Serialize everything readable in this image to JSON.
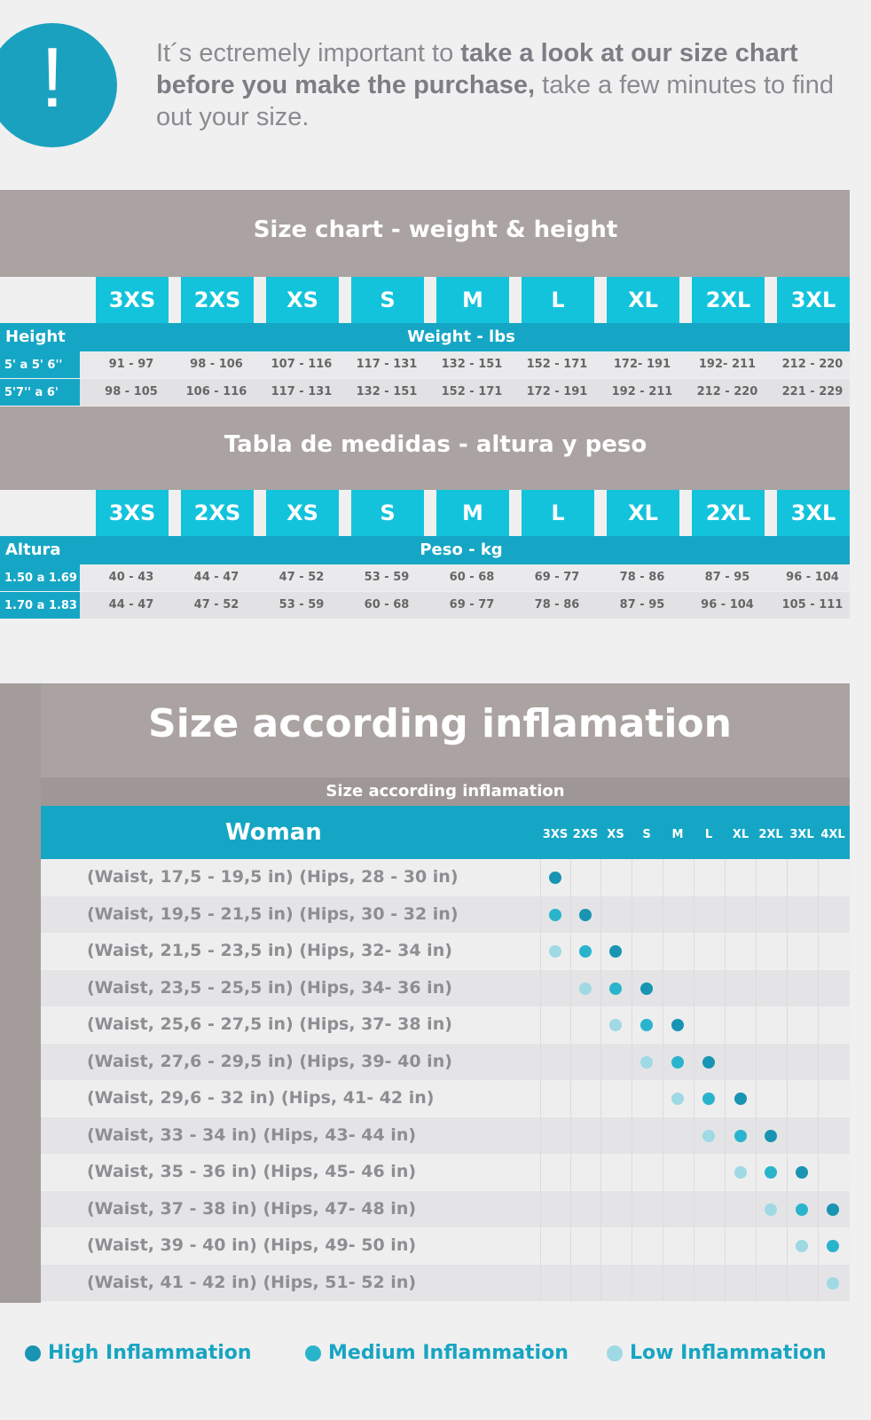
{
  "intro": {
    "pre": "It´s ectremely important to ",
    "bold": "take a look at our size chart before you make the purchase,",
    "post": " take a few minutes to find out your size.",
    "icon": "exclamation-icon",
    "icon_char": "!"
  },
  "chart1": {
    "title": "Size chart - weight & height",
    "sizes": [
      "3XS",
      "2XS",
      "XS",
      "S",
      "M",
      "L",
      "XL",
      "2XL",
      "3XL"
    ],
    "row_header": "Height",
    "unit_header": "Weight - lbs",
    "rows": [
      {
        "label": "5' a 5' 6''",
        "values": [
          "91 - 97",
          "98 - 106",
          "107 - 116",
          "117 - 131",
          "132 - 151",
          "152 - 171",
          "172- 191",
          "192- 211",
          "212 - 220"
        ]
      },
      {
        "label": "5'7'' a 6'",
        "values": [
          "98 - 105",
          "106 - 116",
          "117 - 131",
          "132 - 151",
          "152 - 171",
          "172 - 191",
          "192 - 211",
          "212 - 220",
          "221 - 229"
        ]
      }
    ]
  },
  "chart2": {
    "title": "Tabla de medidas - altura y peso",
    "sizes": [
      "3XS",
      "2XS",
      "XS",
      "S",
      "M",
      "L",
      "XL",
      "2XL",
      "3XL"
    ],
    "row_header": "Altura",
    "unit_header": "Peso - kg",
    "rows": [
      {
        "label": "1.50 a 1.69",
        "values": [
          "40 - 43",
          "44 - 47",
          "47 - 52",
          "53 - 59",
          "60 - 68",
          "69 - 77",
          "78 - 86",
          "87 - 95",
          "96 - 104"
        ]
      },
      {
        "label": "1.70 a 1.83",
        "values": [
          "44 - 47",
          "47 - 52",
          "53 - 59",
          "60 - 68",
          "69 - 77",
          "78 - 86",
          "87 - 95",
          "96 - 104",
          "105 - 111"
        ]
      }
    ]
  },
  "inflammation": {
    "title": "Size according inflamation",
    "subtitle": "Size according inflamation",
    "group": "Woman",
    "sizes": [
      "3XS",
      "2XS",
      "XS",
      "S",
      "M",
      "L",
      "XL",
      "2XL",
      "3XL",
      "4XL"
    ],
    "colors": {
      "high": "#1a94b3",
      "medium": "#2ab4cc",
      "low": "#9fd9e4"
    },
    "rows": [
      {
        "label": "(Waist, 17,5 - 19,5 in) (Hips, 28 - 30 in)",
        "dots": [
          [
            "3XS",
            "high"
          ]
        ]
      },
      {
        "label": "(Waist, 19,5 - 21,5 in) (Hips, 30 - 32 in)",
        "dots": [
          [
            "3XS",
            "medium"
          ],
          [
            "2XS",
            "high"
          ]
        ]
      },
      {
        "label": "(Waist, 21,5 - 23,5 in) (Hips, 32- 34 in)",
        "dots": [
          [
            "3XS",
            "low"
          ],
          [
            "2XS",
            "medium"
          ],
          [
            "XS",
            "high"
          ]
        ]
      },
      {
        "label": "(Waist, 23,5 - 25,5 in) (Hips, 34- 36 in)",
        "dots": [
          [
            "2XS",
            "low"
          ],
          [
            "XS",
            "medium"
          ],
          [
            "S",
            "high"
          ]
        ]
      },
      {
        "label": "(Waist, 25,6 - 27,5 in) (Hips, 37- 38 in)",
        "dots": [
          [
            "XS",
            "low"
          ],
          [
            "S",
            "medium"
          ],
          [
            "M",
            "high"
          ]
        ]
      },
      {
        "label": "(Waist, 27,6 - 29,5 in) (Hips, 39- 40 in)",
        "dots": [
          [
            "S",
            "low"
          ],
          [
            "M",
            "medium"
          ],
          [
            "L",
            "high"
          ]
        ]
      },
      {
        "label": "(Waist, 29,6 - 32 in) (Hips, 41- 42 in)",
        "dots": [
          [
            "M",
            "low"
          ],
          [
            "L",
            "medium"
          ],
          [
            "XL",
            "high"
          ]
        ]
      },
      {
        "label": "(Waist, 33 - 34 in) (Hips, 43- 44 in)",
        "dots": [
          [
            "L",
            "low"
          ],
          [
            "XL",
            "medium"
          ],
          [
            "2XL",
            "high"
          ]
        ]
      },
      {
        "label": "(Waist, 35 - 36 in) (Hips, 45- 46 in)",
        "dots": [
          [
            "XL",
            "low"
          ],
          [
            "2XL",
            "medium"
          ],
          [
            "3XL",
            "high"
          ]
        ]
      },
      {
        "label": "(Waist, 37 - 38 in) (Hips, 47- 48 in)",
        "dots": [
          [
            "2XL",
            "low"
          ],
          [
            "3XL",
            "medium"
          ],
          [
            "4XL",
            "high"
          ]
        ]
      },
      {
        "label": "(Waist, 39 - 40 in) (Hips, 49- 50 in)",
        "dots": [
          [
            "3XL",
            "low"
          ],
          [
            "4XL",
            "medium"
          ]
        ]
      },
      {
        "label": "(Waist, 41 - 42 in) (Hips, 51- 52 in)",
        "dots": [
          [
            "4XL",
            "low"
          ]
        ]
      }
    ],
    "legend": [
      {
        "label": "High Inflammation",
        "level": "high"
      },
      {
        "label": "Medium Inflammation",
        "level": "medium"
      },
      {
        "label": "Low Inflammation",
        "level": "low"
      }
    ]
  }
}
